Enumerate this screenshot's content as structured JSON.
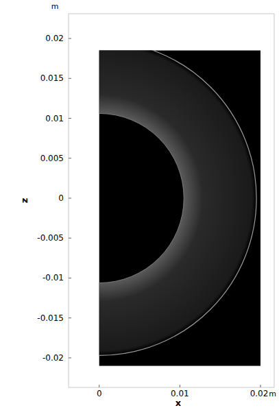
{
  "chart_data": {
    "type": "surface",
    "x_label": "x",
    "y_label": "z",
    "x_unit": "m",
    "y_unit": "m",
    "xlim": [
      -0.0038,
      0.0217
    ],
    "ylim": [
      -0.0237,
      0.0231
    ],
    "xticks": [
      0,
      0.01,
      0.02
    ],
    "yticks": [
      -0.02,
      -0.015,
      -0.01,
      -0.005,
      0,
      0.005,
      0.01,
      0.015,
      0.02
    ],
    "domain": {
      "x": [
        0,
        0.02
      ],
      "z": [
        -0.021,
        0.0185
      ]
    },
    "inner_radius": 0.0105,
    "outer_radius": 0.0195,
    "color": "#5a5a5a",
    "grid": false
  }
}
